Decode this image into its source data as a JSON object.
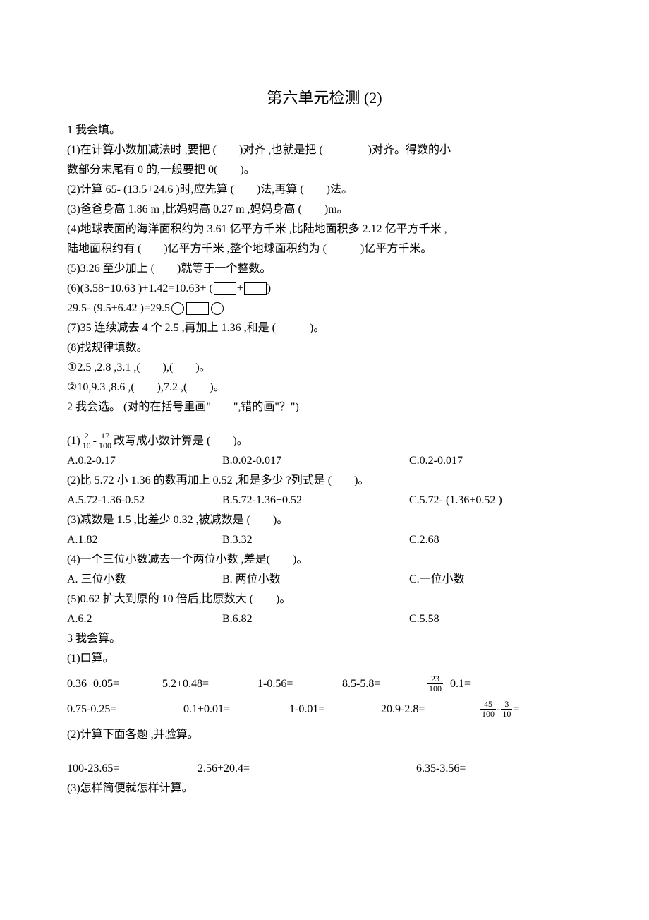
{
  "title": "第六单元检测  (2)",
  "q1": {
    "heading": "1 我会填。",
    "p1": "(1)在计算小数加减法时  ,要把 (　　)对齐 ,也就是把 (　　　　)对齐。得数的小",
    "p1b": "数部分末尾有  0 的,一般要把  0(　　)。",
    "p2": "(2)计算 65- (13.5+24.6 )时,应先算 (　　)法,再算 (　　)法。",
    "p3": "(3)爸爸身高  1.86 m ,比妈妈高  0.27 m ,妈妈身高 (　　)m。",
    "p4": "(4)地球表面的海洋面积约为   3.61 亿平方千米 ,比陆地面积多   2.12 亿平方千米 ,",
    "p4b": "陆地面积约有  (　　)亿平方千米 ,整个地球面积约为  (　　　)亿平方千米。",
    "p5": "(5)3.26 至少加上 (　　)就等于一个整数。",
    "p6a": "(6)(3.58+10.63 )+1.42=10.63+ (",
    "p6b": "+",
    "p6c": ")",
    "p6d": "29.5- (9.5+6.42 )=29.5",
    "p7": "(7)35 连续减去  4 个 2.5 ,再加上  1.36 ,和是 (　　　)。",
    "p8": "(8)找规律填数。",
    "p8a": "①2.5 ,2.8 ,3.1 ,(　　),(　　)。",
    "p8b": "②10,9.3 ,8.6 ,(　　),7.2 ,(　　)。"
  },
  "q2": {
    "heading": "2 我会选。 (对的在括号里画\"　　\",错的画\"？\")",
    "p1a": "(1)",
    "p1b": "改写成小数计算是  (　　)。",
    "frac1": {
      "num": "2",
      "den": "10"
    },
    "minus": "-",
    "frac2": {
      "num": "17",
      "den": "100"
    },
    "a1": "A.0.2-0.17",
    "b1": "B.0.02-0.017",
    "c1": "C.0.2-0.017",
    "p2": "(2)比 5.72 小 1.36 的数再加上  0.52 ,和是多少 ?列式是 (　　)。",
    "a2": "A.5.72-1.36-0.52",
    "b2": "B.5.72-1.36+0.52",
    "c2": "C.5.72- (1.36+0.52 )",
    "p3": "(3)减数是  1.5 ,比差少  0.32 ,被减数是 (　　)。",
    "a3": "A.1.82",
    "b3": "B.3.32",
    "c3": "C.2.68",
    "p4": "(4)一个三位小数减去一个两位小数   ,差是(　　)。",
    "a4": "A. 三位小数",
    "b4": "B. 两位小数",
    "c4": "C.一位小数",
    "p5": "(5)0.62 扩大到原的   10 倍后,比原数大 (　　)。",
    "a5": "A.6.2",
    "b5": "B.6.82",
    "c5": "C.5.58"
  },
  "q3": {
    "heading": "3 我会算。",
    "p1": "(1)口算。",
    "r1a": "0.36+0.05=",
    "r1b": "5.2+0.48=",
    "r1c": "1-0.56=",
    "r1d": "8.5-5.8=",
    "r1e_suffix": "+0.1=",
    "r1e_frac": {
      "num": "23",
      "den": "100"
    },
    "r2a": "0.75-0.25=",
    "r2b": "0.1+0.01=",
    "r2c": "1-0.01=",
    "r2d": "20.9-2.8=",
    "r2e_frac1": {
      "num": "45",
      "den": "100"
    },
    "r2e_mid": "-",
    "r2e_frac2": {
      "num": "3",
      "den": "10"
    },
    "r2e_suffix": "=",
    "p2": "(2)计算下面各题  ,并验算。",
    "r3a": "100-23.65=",
    "r3b": "2.56+20.4=",
    "r3c": "6.35-3.56=",
    "p3": "(3)怎样简便就怎样计算。"
  }
}
